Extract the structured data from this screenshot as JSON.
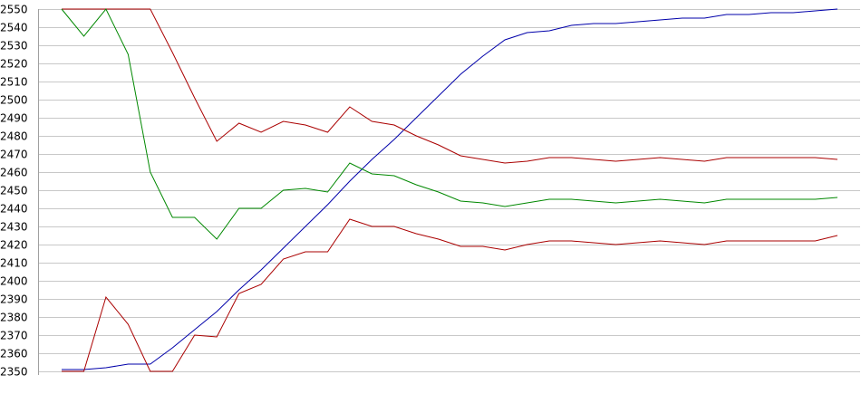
{
  "chart_data": {
    "type": "line",
    "title": "",
    "xlabel": "",
    "ylabel": "",
    "ylim": [
      2350,
      2550
    ],
    "yticks": [
      2350,
      2360,
      2370,
      2380,
      2390,
      2400,
      2410,
      2420,
      2430,
      2440,
      2450,
      2460,
      2470,
      2480,
      2490,
      2500,
      2510,
      2520,
      2530,
      2540,
      2550
    ],
    "grid": true,
    "legend": "none",
    "x": [
      0,
      1,
      2,
      3,
      4,
      5,
      6,
      7,
      8,
      9,
      10,
      11,
      12,
      13,
      14,
      15,
      16,
      17,
      18,
      19,
      20,
      21,
      22,
      23,
      24,
      25,
      26,
      27,
      28,
      29,
      30,
      31,
      32,
      33,
      34,
      35
    ],
    "series": [
      {
        "color": "#0000aa",
        "values": [
          2351,
          2351,
          2352,
          2354,
          2354,
          2363,
          2373,
          2383,
          2395,
          2406,
          2418,
          2430,
          2442,
          2455,
          2467,
          2478,
          2490,
          2502,
          2514,
          2524,
          2533,
          2537,
          2538,
          2541,
          2542,
          2542,
          2543,
          2544,
          2545,
          2545,
          2547,
          2547,
          2548,
          2548,
          2549,
          2550
        ]
      },
      {
        "color": "#aa0000",
        "values": [
          2550,
          2550,
          2550,
          2550,
          2550,
          2526,
          2501,
          2477,
          2487,
          2482,
          2488,
          2486,
          2482,
          2496,
          2488,
          2486,
          2480,
          2475,
          2469,
          2467,
          2465,
          2466,
          2468,
          2468,
          2467,
          2466,
          2467,
          2468,
          2467,
          2466,
          2468,
          2468,
          2468,
          2468,
          2468,
          2467
        ]
      },
      {
        "color": "#008800",
        "values": [
          2550,
          2535,
          2550,
          2525,
          2460,
          2435,
          2435,
          2423,
          2440,
          2440,
          2450,
          2451,
          2449,
          2465,
          2459,
          2458,
          2453,
          2449,
          2444,
          2443,
          2441,
          2443,
          2445,
          2445,
          2444,
          2443,
          2444,
          2445,
          2444,
          2443,
          2445,
          2445,
          2445,
          2445,
          2445,
          2446
        ]
      },
      {
        "color": "#aa0000",
        "values": [
          2350,
          2350,
          2391,
          2376,
          2350,
          2350,
          2370,
          2369,
          2393,
          2398,
          2412,
          2416,
          2416,
          2434,
          2430,
          2430,
          2426,
          2423,
          2419,
          2419,
          2417,
          2420,
          2422,
          2422,
          2421,
          2420,
          2421,
          2422,
          2421,
          2420,
          2422,
          2422,
          2422,
          2422,
          2422,
          2425
        ]
      }
    ]
  }
}
